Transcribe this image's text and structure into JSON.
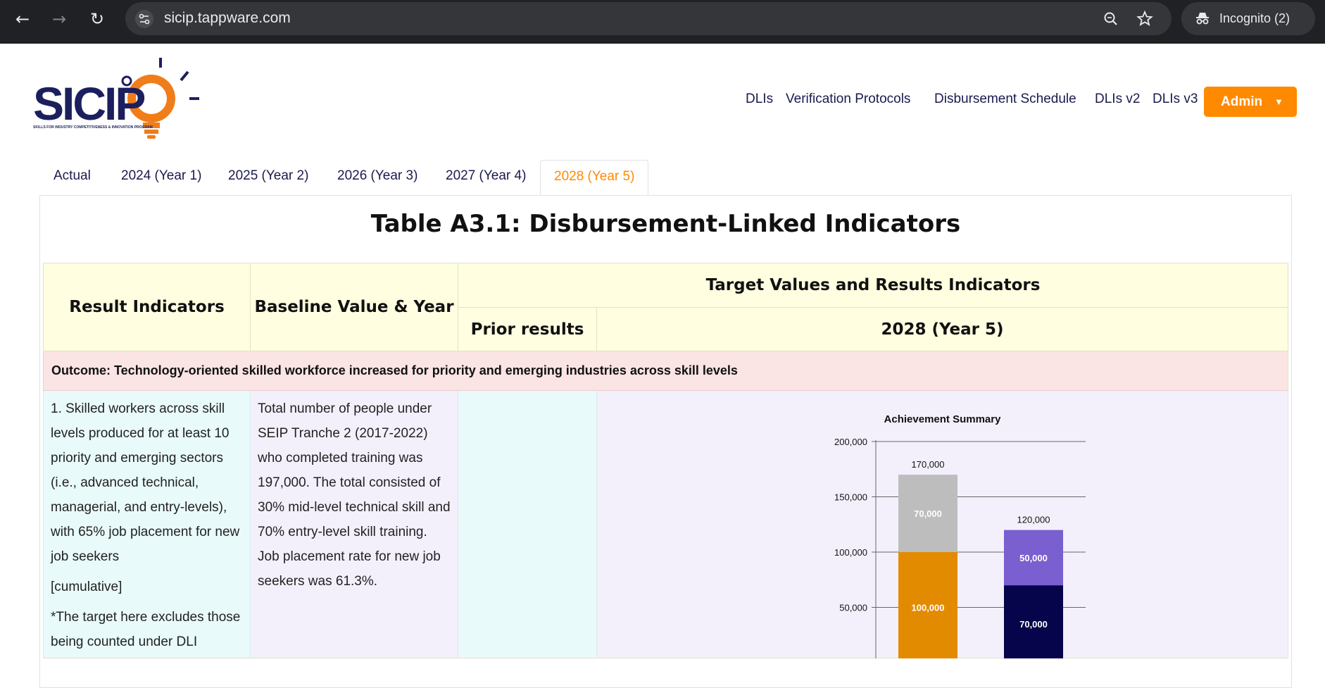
{
  "browser": {
    "url": "sicip.tappware.com",
    "incognito_label": "Incognito (2)"
  },
  "header": {
    "nav": [
      "DLIs",
      "Verification Protocols",
      "Disbursement Schedule",
      "DLIs v2",
      "DLIs v3"
    ],
    "admin_label": "Admin",
    "logo_text": "SICIP",
    "logo_tagline": "SKILLS FOR INDUSTRY COMPETITIVENESS & INNOVATION PROGRAM"
  },
  "tabs": [
    "Actual",
    "2024 (Year 1)",
    "2025 (Year 2)",
    "2026 (Year 3)",
    "2027 (Year 4)",
    "2028 (Year 5)"
  ],
  "active_tab": "2028 (Year 5)",
  "page_title": "Table A3.1: Disbursement-Linked Indicators",
  "table": {
    "col_result": "Result Indicators",
    "col_baseline": "Baseline Value & Year",
    "col_targets": "Target Values and Results Indicators",
    "col_prior": "Prior results",
    "col_year": "2028 (Year 5)",
    "outcome": "Outcome: Technology-oriented skilled workforce increased for priority and emerging industries across skill levels",
    "row1": {
      "indicator": "1. Skilled workers across skill levels produced for at least 10 priority and emerging sectors (i.e., advanced technical, managerial, and entry-levels), with 65% job placement for new job seekers",
      "indicator_tag": "[cumulative]",
      "indicator_note": "*The target here excludes those being counted under DLI",
      "baseline": "Total number of people under SEIP Tranche 2 (2017-2022) who completed training was 197,000. The total consisted of 30% mid-level technical skill and 70% entry-level skill training. Job placement rate for new job seekers was 61.3%."
    }
  },
  "chart_data": {
    "type": "bar",
    "stacked": true,
    "title": "Achievement Summary",
    "ylim": [
      0,
      200000
    ],
    "yticks": [
      "200,000",
      "150,000",
      "100,000",
      "50,000"
    ],
    "ytick_values": [
      200000,
      150000,
      100000,
      50000
    ],
    "grid": true,
    "bars": [
      {
        "total": 170000,
        "total_label": "170,000",
        "segments": [
          {
            "value": 100000,
            "label": "100,000",
            "color": "#e38b00"
          },
          {
            "value": 70000,
            "label": "70,000",
            "color": "#bdbdbd"
          }
        ]
      },
      {
        "total": 120000,
        "total_label": "120,000",
        "segments": [
          {
            "value": 70000,
            "label": "70,000",
            "color": "#06044a"
          },
          {
            "value": 50000,
            "label": "50,000",
            "color": "#7a5fd0"
          }
        ]
      }
    ]
  }
}
